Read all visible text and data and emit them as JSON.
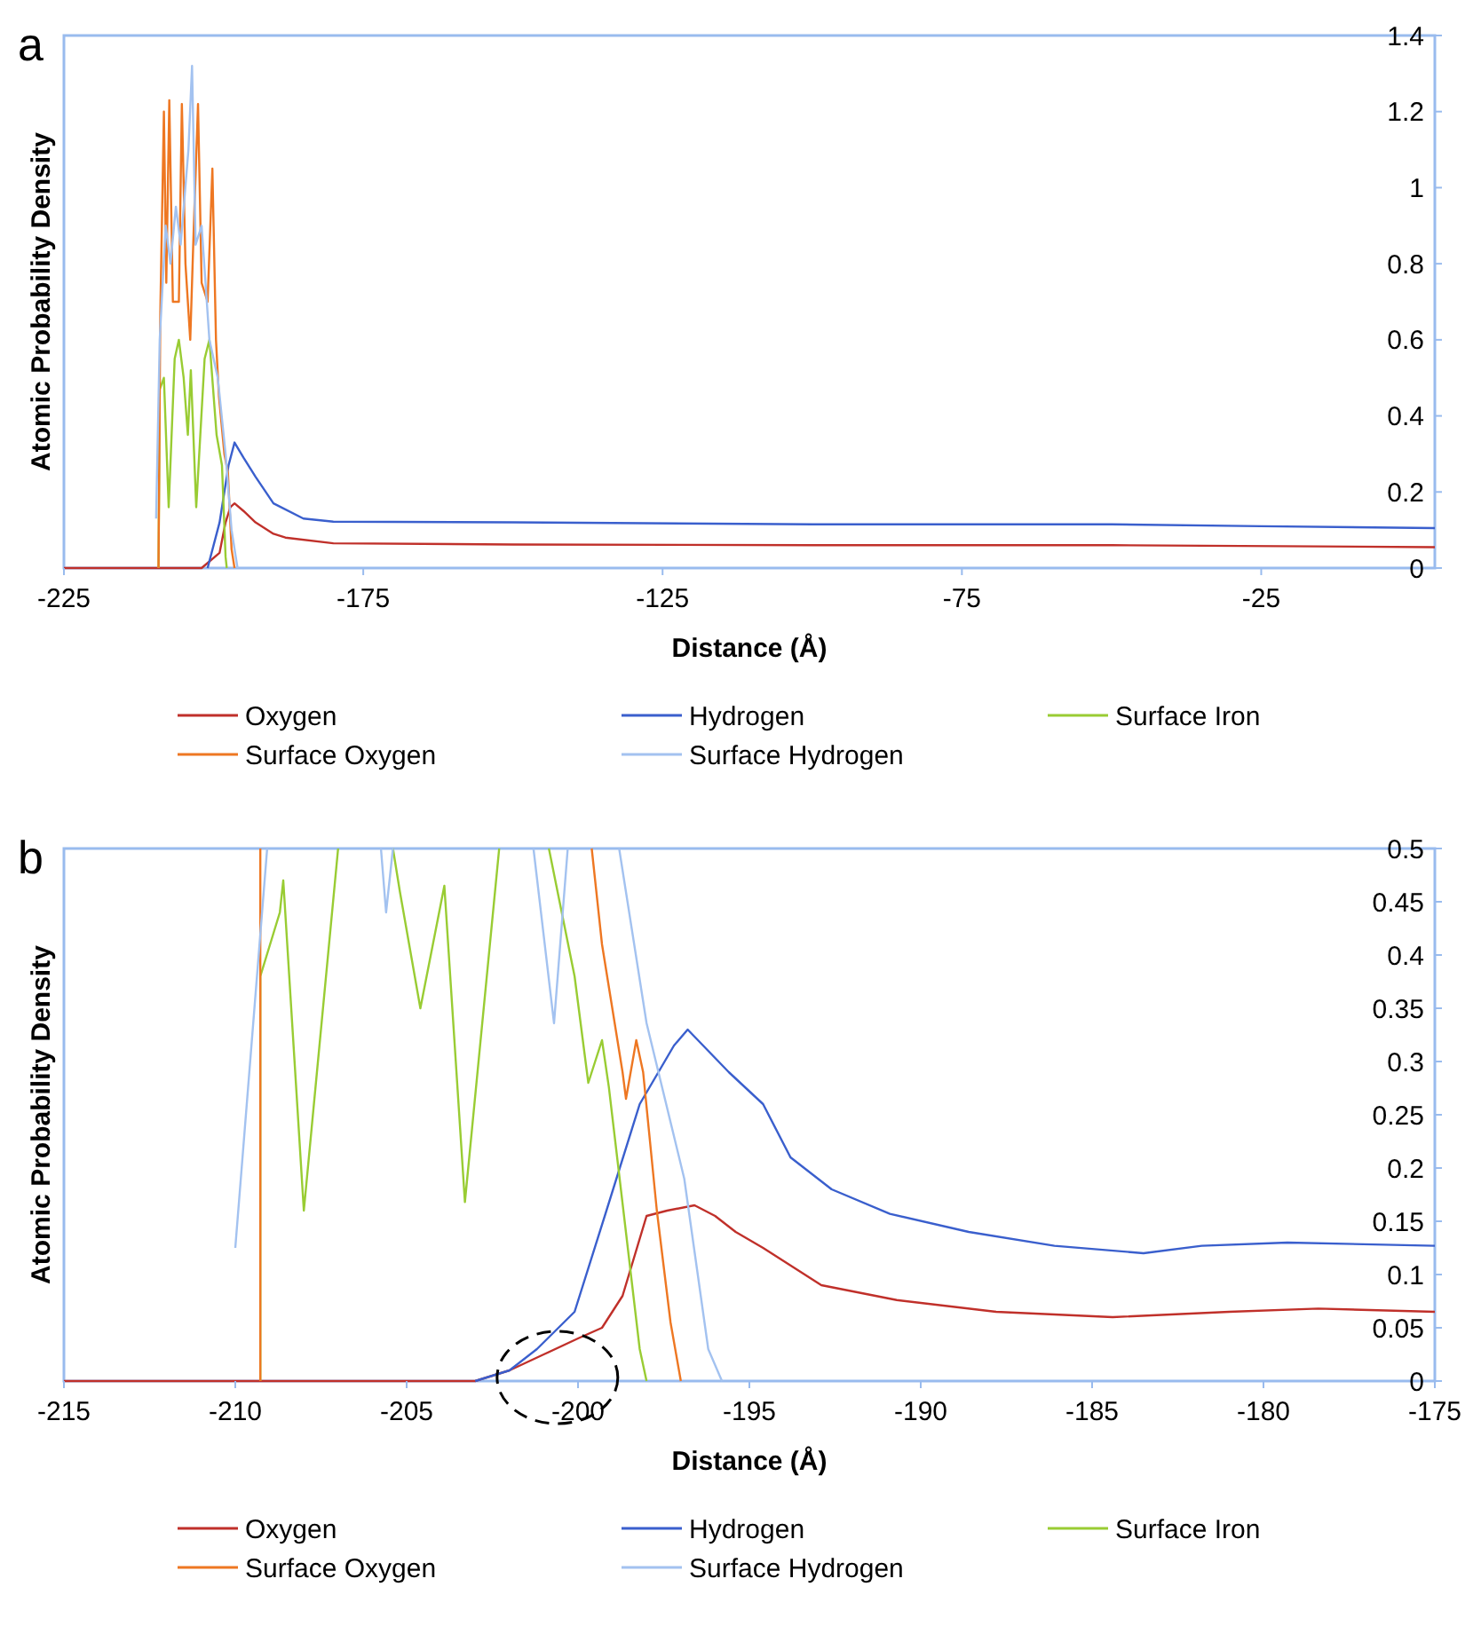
{
  "chart_data": [
    {
      "type": "line",
      "title": "a",
      "xlabel": "Distance (Å)",
      "ylabel": "Atomic Probability Density",
      "xlim": [
        -225,
        4
      ],
      "xticks": [
        -225,
        -175,
        -125,
        -75,
        -25
      ],
      "ylim": [
        0,
        1.4
      ],
      "yticks": [
        0,
        0.2,
        0.4,
        0.6,
        0.8,
        1,
        1.2,
        1.4
      ],
      "grid": false,
      "legend": "bottom",
      "marker": "none",
      "series": [
        {
          "name": "Oxygen",
          "color": "#c0302a",
          "x": [
            -225,
            -202,
            -199,
            -198,
            -197.2,
            -196.5,
            -195,
            -193,
            -190,
            -188,
            -180,
            -150,
            -100,
            -50,
            4
          ],
          "values": [
            0,
            0,
            0.04,
            0.12,
            0.16,
            0.17,
            0.15,
            0.12,
            0.09,
            0.08,
            0.065,
            0.062,
            0.06,
            0.06,
            0.055
          ]
        },
        {
          "name": "Hydrogen",
          "color": "#3a5fcd",
          "x": [
            -201,
            -199,
            -197.5,
            -196.5,
            -195,
            -193,
            -190,
            -185,
            -180,
            -150,
            -100,
            -50,
            -25,
            4
          ],
          "values": [
            0,
            0.12,
            0.27,
            0.33,
            0.29,
            0.24,
            0.17,
            0.13,
            0.122,
            0.12,
            0.115,
            0.115,
            0.11,
            0.105
          ]
        },
        {
          "name": "Surface Iron",
          "color": "#99cc33",
          "x": [
            -209.2,
            -209,
            -208.3,
            -207.5,
            -206.5,
            -205.8,
            -205,
            -204.3,
            -203.8,
            -202.9,
            -201.5,
            -200.7,
            -199.5,
            -198.6,
            -198,
            -197.8
          ],
          "values": [
            0,
            0.47,
            0.5,
            0.16,
            0.55,
            0.6,
            0.5,
            0.35,
            0.52,
            0.16,
            0.55,
            0.6,
            0.35,
            0.27,
            0.03,
            0
          ]
        },
        {
          "name": "Surface Oxygen",
          "color": "#ee7722",
          "x": [
            -209.2,
            -208.9,
            -208.3,
            -207.9,
            -207.4,
            -206.8,
            -205.8,
            -205.3,
            -204.7,
            -203.9,
            -203.3,
            -202.6,
            -202,
            -201,
            -200.2,
            -199.6,
            -199.1,
            -198.2,
            -197.6,
            -197,
            -196.5
          ],
          "values": [
            0,
            0.67,
            1.2,
            0.75,
            1.23,
            0.7,
            0.7,
            1.22,
            0.8,
            0.6,
            0.9,
            1.22,
            0.75,
            0.7,
            1.05,
            0.6,
            0.45,
            0.3,
            0.25,
            0.05,
            0
          ]
        },
        {
          "name": "Surface Hydrogen",
          "color": "#a3c2f0",
          "x": [
            -209.6,
            -209,
            -208,
            -207.2,
            -206.3,
            -205.5,
            -204.2,
            -203.6,
            -203,
            -202,
            -200.7,
            -199.3,
            -198,
            -197,
            -196
          ],
          "values": [
            0.13,
            0.6,
            0.9,
            0.8,
            0.95,
            0.85,
            1.1,
            1.32,
            0.85,
            0.9,
            0.6,
            0.5,
            0.3,
            0.1,
            0
          ]
        }
      ]
    },
    {
      "type": "line",
      "title": "b",
      "xlabel": "Distance (Å)",
      "ylabel": "Atomic Probability Density",
      "xlim": [
        -215,
        -175
      ],
      "xticks": [
        -215,
        -210,
        -205,
        -200,
        -195,
        -190,
        -185,
        -180,
        -175
      ],
      "ylim": [
        0,
        0.5
      ],
      "yticks": [
        0,
        0.05,
        0.1,
        0.15,
        0.2,
        0.25,
        0.3,
        0.35,
        0.4,
        0.45,
        0.5
      ],
      "grid": false,
      "legend": "bottom",
      "marker": "none",
      "series": [
        {
          "name": "Oxygen",
          "color": "#c0302a",
          "x": [
            -215,
            -203,
            -202,
            -201,
            -200,
            -199.3,
            -198.7,
            -198,
            -197.4,
            -196.6,
            -196,
            -195.4,
            -194.6,
            -192.9,
            -190.7,
            -187.8,
            -184.4,
            -181,
            -178.4,
            -175
          ],
          "values": [
            0,
            0,
            0.01,
            0.025,
            0.04,
            0.05,
            0.08,
            0.155,
            0.16,
            0.165,
            0.155,
            0.14,
            0.125,
            0.09,
            0.076,
            0.065,
            0.06,
            0.065,
            0.068,
            0.065
          ]
        },
        {
          "name": "Hydrogen",
          "color": "#3a5fcd",
          "x": [
            -203,
            -202,
            -201.2,
            -200.1,
            -199.2,
            -198.2,
            -197.2,
            -196.8,
            -195.6,
            -194.6,
            -193.8,
            -192.6,
            -190.9,
            -188.6,
            -186.1,
            -183.5,
            -181.8,
            -179.3,
            -175
          ],
          "values": [
            0,
            0.01,
            0.03,
            0.065,
            0.157,
            0.26,
            0.315,
            0.33,
            0.29,
            0.26,
            0.21,
            0.18,
            0.157,
            0.14,
            0.127,
            0.12,
            0.127,
            0.13,
            0.127
          ]
        },
        {
          "name": "Surface Iron",
          "color": "#99cc33",
          "x": [
            -209.27,
            -209.27,
            -208.7,
            -208.6,
            -208,
            -207,
            -206.2,
            -205.4,
            -205.2,
            -204.6,
            -203.9,
            -203.3,
            -202.3,
            -201.5,
            -200.85,
            -200.1,
            -199.7,
            -199.3,
            -199.1,
            -198.2,
            -198
          ],
          "values": [
            0,
            0.38,
            0.44,
            0.47,
            0.16,
            0.5,
            null,
            0.5,
            0.46,
            0.35,
            0.465,
            0.168,
            0.5,
            null,
            0.5,
            0.38,
            0.28,
            0.32,
            0.276,
            0.03,
            0
          ]
        },
        {
          "name": "Surface Oxygen",
          "color": "#ee7722",
          "x": [
            -209.27,
            -209.27,
            -204.5,
            -199.6,
            -199.3,
            -198.7,
            -198.6,
            -198.3,
            -198.1,
            -197.7,
            -197.3,
            -197
          ],
          "values": [
            0,
            0.5,
            null,
            0.5,
            0.41,
            0.29,
            0.265,
            0.32,
            0.29,
            0.16,
            0.055,
            0
          ]
        },
        {
          "name": "Surface Hydrogen",
          "color": "#a3c2f0",
          "x": [
            -210,
            -209.07,
            -207.5,
            -205.75,
            -205.6,
            -205.4,
            -203.5,
            -201.3,
            -200.7,
            -200.3,
            -199.5,
            -198.8,
            -198,
            -196.9,
            -196.2,
            -195.8
          ],
          "values": [
            0.125,
            0.5,
            null,
            0.5,
            0.44,
            0.5,
            null,
            0.5,
            0.336,
            0.5,
            null,
            0.5,
            0.336,
            0.19,
            0.03,
            0
          ]
        }
      ]
    }
  ]
}
